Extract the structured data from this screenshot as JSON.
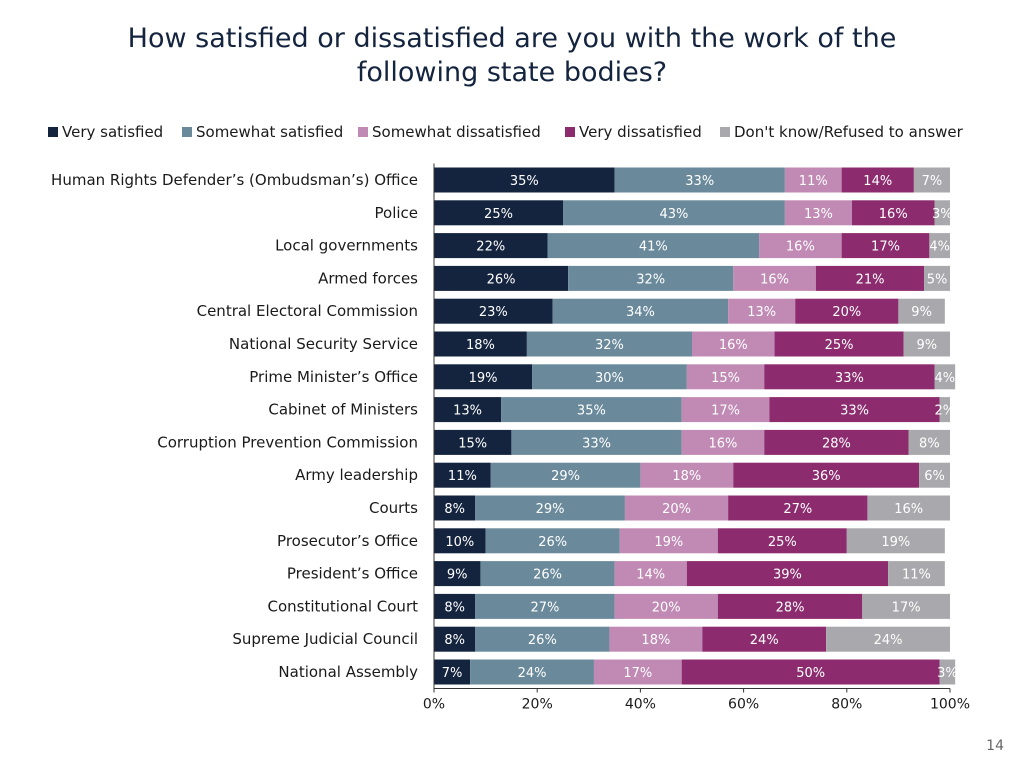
{
  "title": {
    "line1": "How satisfied or dissatisfied are you with the work of the",
    "line2": "following state bodies?"
  },
  "page_number": "14",
  "chart_data": {
    "type": "bar",
    "orientation": "horizontal",
    "stacked": true,
    "title": "How satisfied or dissatisfied are you with the work of the following state bodies?",
    "xlim": [
      0,
      100
    ],
    "x_ticks": [
      "0%",
      "20%",
      "40%",
      "60%",
      "80%",
      "100%"
    ],
    "legend_position": "top",
    "categories": [
      "Human Rights Defender’s (Ombudsman’s) Office",
      "Police",
      "Local governments",
      "Armed forces",
      "Central Electoral Commission",
      "National Security Service",
      "Prime Minister’s Office",
      "Cabinet of Ministers",
      "Corruption Prevention Commission",
      "Army leadership",
      "Courts",
      "Prosecutor’s Office",
      "President’s Office",
      "Constitutional Court",
      "Supreme Judicial Council",
      "National Assembly"
    ],
    "series": [
      {
        "name": "Very satisfied",
        "color": "#14243e",
        "values": [
          35,
          25,
          22,
          26,
          23,
          18,
          19,
          13,
          15,
          11,
          8,
          10,
          9,
          8,
          8,
          7
        ]
      },
      {
        "name": "Somewhat satisfied",
        "color": "#6a8a9c",
        "values": [
          33,
          43,
          41,
          32,
          34,
          32,
          30,
          35,
          33,
          29,
          29,
          26,
          26,
          27,
          26,
          24
        ]
      },
      {
        "name": "Somewhat dissatisfied",
        "color": "#c08ab4",
        "values": [
          11,
          13,
          16,
          16,
          13,
          16,
          15,
          17,
          16,
          18,
          20,
          19,
          14,
          20,
          18,
          17
        ]
      },
      {
        "name": "Very dissatisfied",
        "color": "#8c2c6e",
        "values": [
          14,
          16,
          17,
          21,
          20,
          25,
          33,
          33,
          28,
          36,
          27,
          25,
          39,
          28,
          24,
          50
        ]
      },
      {
        "name": "Don't know/Refused to answer",
        "color": "#a9a9ad",
        "values": [
          7,
          3,
          4,
          5,
          9,
          9,
          4,
          2,
          8,
          6,
          16,
          19,
          11,
          17,
          24,
          3
        ]
      }
    ]
  }
}
